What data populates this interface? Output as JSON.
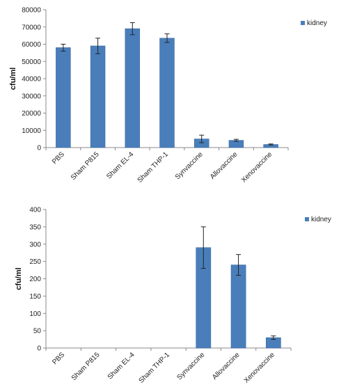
{
  "chart_data": [
    {
      "type": "bar",
      "categories": [
        "PBS",
        "Sham P815",
        "Sham EL-4",
        "Sham THP-1",
        "Synvaccine",
        "Allovaccine",
        "Xenovaccine"
      ],
      "series": [
        {
          "name": "kidney",
          "values": [
            58000,
            59000,
            69000,
            63500,
            5000,
            4200,
            1800
          ],
          "errors": [
            2000,
            4500,
            3500,
            2500,
            2200,
            600,
            300
          ]
        }
      ],
      "ylabel": "cfu/ml",
      "ylim": [
        0,
        80000
      ],
      "yticks": [
        0,
        10000,
        20000,
        30000,
        40000,
        50000,
        60000,
        70000,
        80000
      ],
      "ytick_labels": [
        "0",
        "10000",
        "20000",
        "30000",
        "40000",
        "50000",
        "60000",
        "70000",
        "80000"
      ],
      "legend_position": "top-right",
      "grid": false,
      "colors": {
        "bar": "#4a7ebb",
        "bar_edge": "#3a6aa3",
        "error": "#222222",
        "axis": "#888888"
      }
    },
    {
      "type": "bar",
      "categories": [
        "PBS",
        "Sham P815",
        "Sham EL-4",
        "Sham THP-1",
        "Synvaccine",
        "Allovaccine",
        "Xenovaccine"
      ],
      "series": [
        {
          "name": "kidney",
          "values": [
            0,
            0,
            0,
            0,
            290,
            240,
            30
          ],
          "errors": [
            0,
            0,
            0,
            0,
            60,
            30,
            5
          ]
        }
      ],
      "ylabel": "cfu/ml",
      "ylim": [
        0,
        400
      ],
      "yticks": [
        0,
        50,
        100,
        150,
        200,
        250,
        300,
        350,
        400
      ],
      "ytick_labels": [
        "0",
        "50",
        "100",
        "150",
        "200",
        "250",
        "300",
        "350",
        "400"
      ],
      "legend_position": "top-right",
      "grid": false,
      "colors": {
        "bar": "#4a7ebb",
        "bar_edge": "#3a6aa3",
        "error": "#222222",
        "axis": "#888888"
      }
    }
  ]
}
